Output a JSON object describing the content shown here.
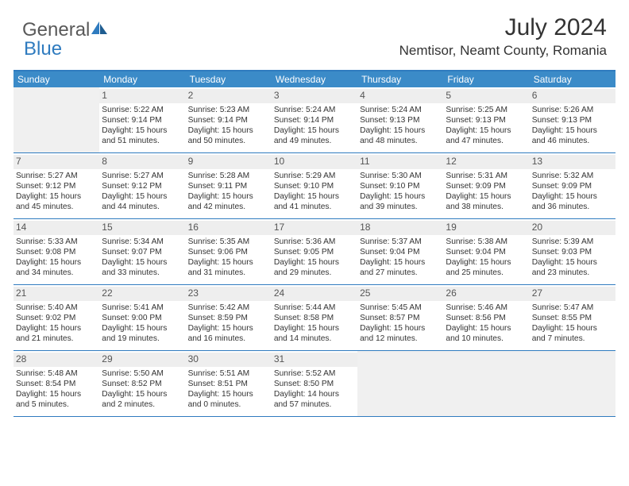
{
  "logo": {
    "part1": "General",
    "part2": "Blue"
  },
  "title": "July 2024",
  "location": "Nemtisor, Neamt County, Romania",
  "weekdays": [
    "Sunday",
    "Monday",
    "Tuesday",
    "Wednesday",
    "Thursday",
    "Friday",
    "Saturday"
  ],
  "colors": {
    "header_bar": "#3b8bc8",
    "border": "#2f7bbf",
    "empty_bg": "#f0f0f0",
    "daynum_bg": "#eeeeee",
    "text": "#333333",
    "logo_gray": "#595959",
    "logo_blue": "#2f7bbf"
  },
  "weeks": [
    [
      {
        "empty": true
      },
      {
        "num": "1",
        "sunrise": "Sunrise: 5:22 AM",
        "sunset": "Sunset: 9:14 PM",
        "d1": "Daylight: 15 hours",
        "d2": "and 51 minutes."
      },
      {
        "num": "2",
        "sunrise": "Sunrise: 5:23 AM",
        "sunset": "Sunset: 9:14 PM",
        "d1": "Daylight: 15 hours",
        "d2": "and 50 minutes."
      },
      {
        "num": "3",
        "sunrise": "Sunrise: 5:24 AM",
        "sunset": "Sunset: 9:14 PM",
        "d1": "Daylight: 15 hours",
        "d2": "and 49 minutes."
      },
      {
        "num": "4",
        "sunrise": "Sunrise: 5:24 AM",
        "sunset": "Sunset: 9:13 PM",
        "d1": "Daylight: 15 hours",
        "d2": "and 48 minutes."
      },
      {
        "num": "5",
        "sunrise": "Sunrise: 5:25 AM",
        "sunset": "Sunset: 9:13 PM",
        "d1": "Daylight: 15 hours",
        "d2": "and 47 minutes."
      },
      {
        "num": "6",
        "sunrise": "Sunrise: 5:26 AM",
        "sunset": "Sunset: 9:13 PM",
        "d1": "Daylight: 15 hours",
        "d2": "and 46 minutes."
      }
    ],
    [
      {
        "num": "7",
        "sunrise": "Sunrise: 5:27 AM",
        "sunset": "Sunset: 9:12 PM",
        "d1": "Daylight: 15 hours",
        "d2": "and 45 minutes."
      },
      {
        "num": "8",
        "sunrise": "Sunrise: 5:27 AM",
        "sunset": "Sunset: 9:12 PM",
        "d1": "Daylight: 15 hours",
        "d2": "and 44 minutes."
      },
      {
        "num": "9",
        "sunrise": "Sunrise: 5:28 AM",
        "sunset": "Sunset: 9:11 PM",
        "d1": "Daylight: 15 hours",
        "d2": "and 42 minutes."
      },
      {
        "num": "10",
        "sunrise": "Sunrise: 5:29 AM",
        "sunset": "Sunset: 9:10 PM",
        "d1": "Daylight: 15 hours",
        "d2": "and 41 minutes."
      },
      {
        "num": "11",
        "sunrise": "Sunrise: 5:30 AM",
        "sunset": "Sunset: 9:10 PM",
        "d1": "Daylight: 15 hours",
        "d2": "and 39 minutes."
      },
      {
        "num": "12",
        "sunrise": "Sunrise: 5:31 AM",
        "sunset": "Sunset: 9:09 PM",
        "d1": "Daylight: 15 hours",
        "d2": "and 38 minutes."
      },
      {
        "num": "13",
        "sunrise": "Sunrise: 5:32 AM",
        "sunset": "Sunset: 9:09 PM",
        "d1": "Daylight: 15 hours",
        "d2": "and 36 minutes."
      }
    ],
    [
      {
        "num": "14",
        "sunrise": "Sunrise: 5:33 AM",
        "sunset": "Sunset: 9:08 PM",
        "d1": "Daylight: 15 hours",
        "d2": "and 34 minutes."
      },
      {
        "num": "15",
        "sunrise": "Sunrise: 5:34 AM",
        "sunset": "Sunset: 9:07 PM",
        "d1": "Daylight: 15 hours",
        "d2": "and 33 minutes."
      },
      {
        "num": "16",
        "sunrise": "Sunrise: 5:35 AM",
        "sunset": "Sunset: 9:06 PM",
        "d1": "Daylight: 15 hours",
        "d2": "and 31 minutes."
      },
      {
        "num": "17",
        "sunrise": "Sunrise: 5:36 AM",
        "sunset": "Sunset: 9:05 PM",
        "d1": "Daylight: 15 hours",
        "d2": "and 29 minutes."
      },
      {
        "num": "18",
        "sunrise": "Sunrise: 5:37 AM",
        "sunset": "Sunset: 9:04 PM",
        "d1": "Daylight: 15 hours",
        "d2": "and 27 minutes."
      },
      {
        "num": "19",
        "sunrise": "Sunrise: 5:38 AM",
        "sunset": "Sunset: 9:04 PM",
        "d1": "Daylight: 15 hours",
        "d2": "and 25 minutes."
      },
      {
        "num": "20",
        "sunrise": "Sunrise: 5:39 AM",
        "sunset": "Sunset: 9:03 PM",
        "d1": "Daylight: 15 hours",
        "d2": "and 23 minutes."
      }
    ],
    [
      {
        "num": "21",
        "sunrise": "Sunrise: 5:40 AM",
        "sunset": "Sunset: 9:02 PM",
        "d1": "Daylight: 15 hours",
        "d2": "and 21 minutes."
      },
      {
        "num": "22",
        "sunrise": "Sunrise: 5:41 AM",
        "sunset": "Sunset: 9:00 PM",
        "d1": "Daylight: 15 hours",
        "d2": "and 19 minutes."
      },
      {
        "num": "23",
        "sunrise": "Sunrise: 5:42 AM",
        "sunset": "Sunset: 8:59 PM",
        "d1": "Daylight: 15 hours",
        "d2": "and 16 minutes."
      },
      {
        "num": "24",
        "sunrise": "Sunrise: 5:44 AM",
        "sunset": "Sunset: 8:58 PM",
        "d1": "Daylight: 15 hours",
        "d2": "and 14 minutes."
      },
      {
        "num": "25",
        "sunrise": "Sunrise: 5:45 AM",
        "sunset": "Sunset: 8:57 PM",
        "d1": "Daylight: 15 hours",
        "d2": "and 12 minutes."
      },
      {
        "num": "26",
        "sunrise": "Sunrise: 5:46 AM",
        "sunset": "Sunset: 8:56 PM",
        "d1": "Daylight: 15 hours",
        "d2": "and 10 minutes."
      },
      {
        "num": "27",
        "sunrise": "Sunrise: 5:47 AM",
        "sunset": "Sunset: 8:55 PM",
        "d1": "Daylight: 15 hours",
        "d2": "and 7 minutes."
      }
    ],
    [
      {
        "num": "28",
        "sunrise": "Sunrise: 5:48 AM",
        "sunset": "Sunset: 8:54 PM",
        "d1": "Daylight: 15 hours",
        "d2": "and 5 minutes."
      },
      {
        "num": "29",
        "sunrise": "Sunrise: 5:50 AM",
        "sunset": "Sunset: 8:52 PM",
        "d1": "Daylight: 15 hours",
        "d2": "and 2 minutes."
      },
      {
        "num": "30",
        "sunrise": "Sunrise: 5:51 AM",
        "sunset": "Sunset: 8:51 PM",
        "d1": "Daylight: 15 hours",
        "d2": "and 0 minutes."
      },
      {
        "num": "31",
        "sunrise": "Sunrise: 5:52 AM",
        "sunset": "Sunset: 8:50 PM",
        "d1": "Daylight: 14 hours",
        "d2": "and 57 minutes."
      },
      {
        "empty": true
      },
      {
        "empty": true
      },
      {
        "empty": true
      }
    ]
  ]
}
